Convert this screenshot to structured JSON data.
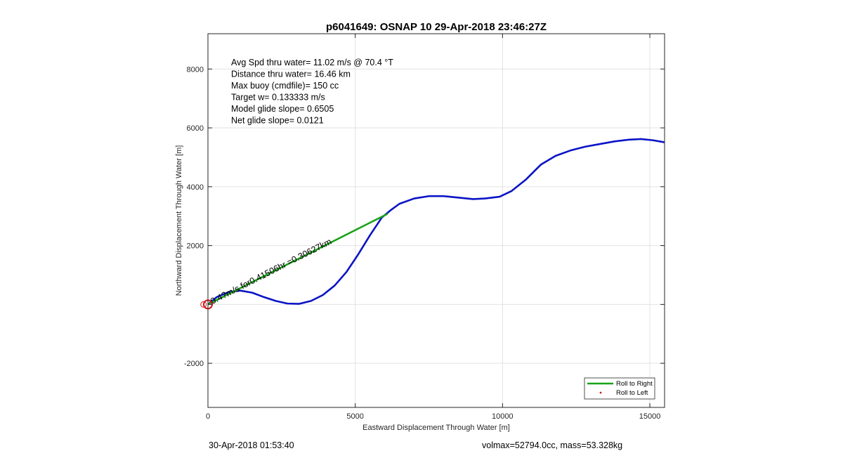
{
  "chart_data": {
    "type": "line",
    "title": "p6041649: OSNAP 10 29-Apr-2018 23:46:27Z",
    "xlabel": "Eastward Displacement Through Water [m]",
    "ylabel": "Northward Displacement Through Water [m]",
    "xlim": [
      0,
      15500
    ],
    "ylim": [
      -3500,
      9200
    ],
    "xticks": [
      0,
      5000,
      10000,
      15000
    ],
    "yticks": [
      -2000,
      2000,
      4000,
      6000,
      8000
    ],
    "grid": true,
    "colors": {
      "track": "#0b14c4",
      "roll_right": "#19a319",
      "roll_left": "#d11515",
      "start_marker": "#d11515"
    },
    "series": [
      {
        "name": "track",
        "x": [
          0,
          300,
          700,
          1100,
          1500,
          1900,
          2300,
          2700,
          3100,
          3500,
          3900,
          4300,
          4700,
          5100,
          5500,
          5900,
          6200,
          6500,
          7000,
          7500,
          8000,
          8500,
          9000,
          9400,
          9900,
          10300,
          10800,
          11300,
          11800,
          12300,
          12800,
          13300,
          13800,
          14300,
          14700,
          15100,
          15500
        ],
        "y": [
          0,
          250,
          420,
          470,
          400,
          250,
          120,
          30,
          20,
          120,
          320,
          640,
          1100,
          1700,
          2350,
          2950,
          3200,
          3420,
          3600,
          3680,
          3680,
          3630,
          3580,
          3600,
          3660,
          3850,
          4250,
          4750,
          5050,
          5230,
          5360,
          5450,
          5540,
          5600,
          5620,
          5580,
          5510
        ]
      },
      {
        "name": "Roll to Right",
        "x": [
          0,
          6100
        ],
        "y": [
          0,
          3080
        ]
      }
    ],
    "start_marker": {
      "x": 0,
      "y": 0
    },
    "left_marker": {
      "x": -150,
      "y": 0
    },
    "annotation": {
      "text": "0.4?m/s for0.41506hr =0.30627km",
      "x": 150,
      "y": 0,
      "angle_deg": -27
    },
    "stats": [
      "Avg Spd thru water= 11.02 m/s @  70.4 °T",
      "Distance thru water= 16.46 km",
      "Max buoy (cmdfile)= 150 cc",
      "Target w= 0.133333 m/s",
      "Model glide slope= 0.6505",
      "Net glide slope= 0.0121"
    ],
    "legend": {
      "position": "bottom-right",
      "entries": [
        {
          "label": "Roll to Right",
          "style": "line",
          "color": "#19a319"
        },
        {
          "label": "Roll to Left",
          "style": "dot",
          "color": "#d11515"
        }
      ]
    }
  },
  "footer": {
    "timestamp": "30-Apr-2018 01:53:40",
    "volmax_mass": "volmax=52794.0cc, mass=53.328kg"
  }
}
